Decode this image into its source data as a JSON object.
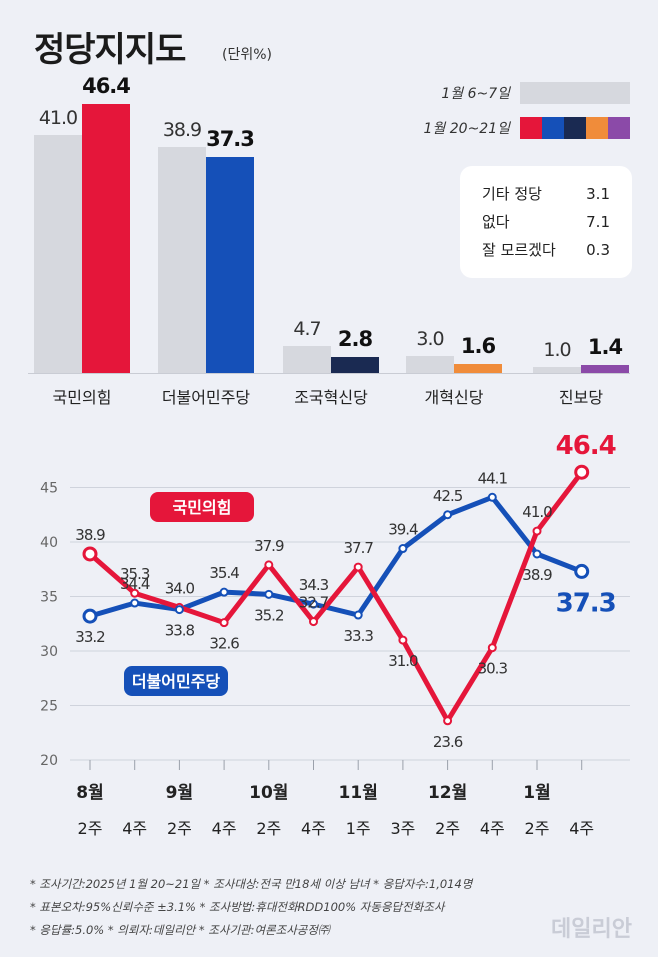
{
  "title": "정당지지도",
  "unit": "(단위%)",
  "legend": {
    "prev_label": "1월 6~7일",
    "curr_label": "1월 20~21일",
    "prev_color": "#d6d8de",
    "curr_colors": [
      "#e5163a",
      "#1550b8",
      "#1a2a52",
      "#f08c3a",
      "#8b4aa8"
    ]
  },
  "other_parties": [
    {
      "name": "기타 정당",
      "value": "3.1"
    },
    {
      "name": "없다",
      "value": "7.1"
    },
    {
      "name": "잘 모르겠다",
      "value": "0.3"
    }
  ],
  "chart_data": [
    {
      "type": "bar",
      "categories": [
        "국민의힘",
        "더불어민주당",
        "조국혁신당",
        "개혁신당",
        "진보당"
      ],
      "series": [
        {
          "name": "1월 6~7일",
          "values": [
            41.0,
            38.9,
            4.7,
            3.0,
            1.0
          ],
          "labels": [
            "41.0",
            "38.9",
            "4.7",
            "3.0",
            "1.0"
          ],
          "color": "#d6d8de"
        },
        {
          "name": "1월 20~21일",
          "values": [
            46.4,
            37.3,
            2.8,
            1.6,
            1.4
          ],
          "labels": [
            "46.4",
            "37.3",
            "2.8",
            "1.6",
            "1.4"
          ],
          "colors": [
            "#e5163a",
            "#1550b8",
            "#1a2a52",
            "#f08c3a",
            "#8b4aa8"
          ]
        }
      ]
    },
    {
      "type": "line",
      "months": [
        "8월",
        "9월",
        "10월",
        "11월",
        "12월",
        "1월"
      ],
      "x": [
        "2주",
        "4주",
        "2주",
        "4주",
        "2주",
        "4주",
        "1주",
        "3주",
        "2주",
        "4주",
        "2주",
        "4주"
      ],
      "yticks": [
        "45",
        "40",
        "35",
        "30",
        "25",
        "20"
      ],
      "ylim": [
        20,
        47.5
      ],
      "series": [
        {
          "name": "국민의힘",
          "values": [
            38.9,
            35.3,
            34.0,
            32.6,
            37.9,
            32.7,
            37.7,
            31.0,
            23.6,
            30.3,
            41.0,
            46.4
          ],
          "labels": [
            "38.9",
            "35.3",
            "34.0",
            "32.6",
            "37.9",
            "32.7",
            "37.7",
            "31.0",
            "23.6",
            "30.3",
            "41.0",
            "46.4"
          ],
          "color": "#e5163a"
        },
        {
          "name": "더불어민주당",
          "values": [
            33.2,
            34.4,
            33.8,
            35.4,
            35.2,
            34.3,
            33.3,
            39.4,
            42.5,
            44.1,
            38.9,
            37.3
          ],
          "labels": [
            "33.2",
            "34.4",
            "33.8",
            "35.4",
            "35.2",
            "34.3",
            "33.3",
            "39.4",
            "42.5",
            "44.1",
            "38.9",
            "37.3"
          ],
          "color": "#1550b8"
        }
      ]
    }
  ],
  "footnotes": [
    "* 조사기간:2025년 1월 20~21일  * 조사대상:전국 만18세 이상 남녀  * 응답자수:1,014명",
    "* 표본오차:95%신뢰수준 ±3.1%  * 조사방법:휴대전화RDD100% 자동응답전화조사",
    "* 응답률:5.0%  * 의뢰자:데일리안  * 조사기관:여론조사공정㈜"
  ],
  "watermark": "데일리안"
}
